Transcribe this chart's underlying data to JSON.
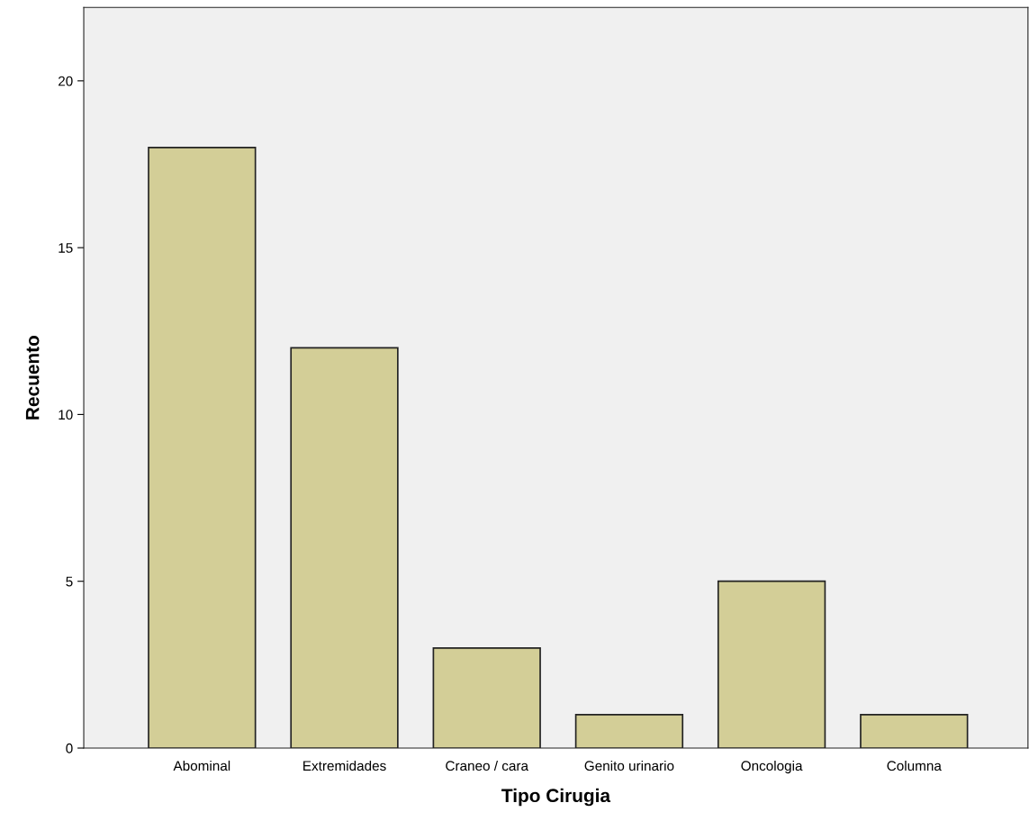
{
  "chart_data": {
    "type": "bar",
    "xlabel": "Tipo Cirugia",
    "ylabel": "Recuento",
    "categories": [
      "Abominal",
      "Extremidades",
      "Craneo / cara",
      "Genito urinario",
      "Oncologia",
      "Columna"
    ],
    "values": [
      18,
      12,
      3,
      1,
      5,
      1
    ],
    "color": "#d3ce97",
    "ylim": [
      0,
      22.2
    ],
    "yticks": [
      0,
      5,
      10,
      15,
      20
    ],
    "grid": false,
    "legend": false
  }
}
